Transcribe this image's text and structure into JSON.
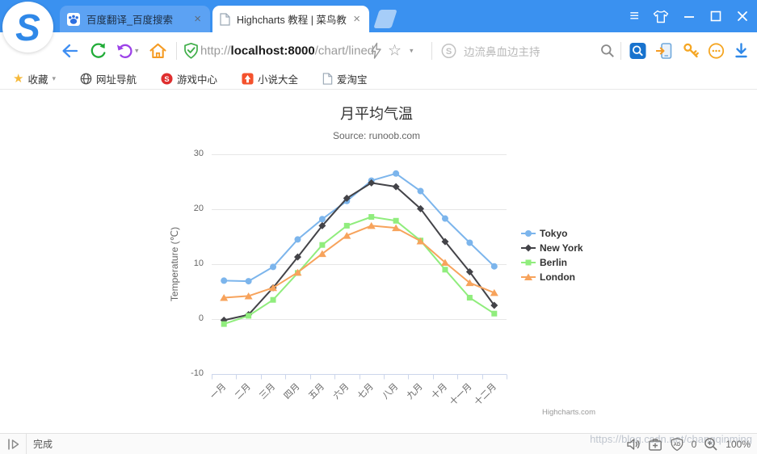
{
  "icons": {
    "close_x": "×",
    "caret_down": "▾",
    "favorite_star": "★",
    "star_outline": "☆",
    "menu": "≡",
    "logo_s": "S"
  },
  "browser": {
    "tabs": [
      {
        "title": "百度翻译_百度搜索"
      },
      {
        "title": "Highcharts 教程 | 菜鸟教程"
      }
    ],
    "toolbar": {
      "url": {
        "protocol": "http://",
        "host": "localhost:8000",
        "path": "/chart/lined"
      },
      "search": {
        "placeholder": "边流鼻血边主持"
      }
    },
    "bookmarks": [
      {
        "label": "收藏"
      },
      {
        "label": "网址导航"
      },
      {
        "label": "游戏中心"
      },
      {
        "label": "小说大全"
      },
      {
        "label": "爱淘宝"
      }
    ],
    "statusbar": {
      "status_text": "完成",
      "ad_count": "0",
      "zoom_level": "100%"
    },
    "watermark": "https://blog.csdn.net/changqinming"
  },
  "chart_data": {
    "type": "line",
    "title": "月平均气温",
    "subtitle": "Source: runoob.com",
    "xlabel": "",
    "ylabel": "Temperature (℃)",
    "ylim": [
      -10,
      30
    ],
    "yticks": [
      30,
      20,
      10,
      0,
      -10
    ],
    "grid": true,
    "legend_position": "right",
    "credit": "Highcharts.com",
    "categories": [
      "一月",
      "二月",
      "三月",
      "四月",
      "五月",
      "六月",
      "七月",
      "八月",
      "九月",
      "十月",
      "十一月",
      "十二月"
    ],
    "series": [
      {
        "name": "Tokyo",
        "color": "#7cb5ec",
        "marker": "circle",
        "values": [
          7.0,
          6.9,
          9.5,
          14.5,
          18.2,
          21.5,
          25.2,
          26.5,
          23.3,
          18.3,
          13.9,
          9.6
        ]
      },
      {
        "name": "New York",
        "color": "#434348",
        "marker": "diamond",
        "values": [
          -0.2,
          0.8,
          5.7,
          11.3,
          17.0,
          22.0,
          24.8,
          24.1,
          20.1,
          14.1,
          8.6,
          2.5
        ]
      },
      {
        "name": "Berlin",
        "color": "#90ed7d",
        "marker": "square",
        "values": [
          -0.9,
          0.6,
          3.5,
          8.4,
          13.5,
          17.0,
          18.6,
          17.9,
          14.3,
          9.0,
          3.9,
          1.0
        ]
      },
      {
        "name": "London",
        "color": "#f7a35c",
        "marker": "triangle",
        "values": [
          3.9,
          4.2,
          5.7,
          8.5,
          11.9,
          15.2,
          17.0,
          16.6,
          14.2,
          10.3,
          6.6,
          4.8
        ]
      }
    ]
  }
}
